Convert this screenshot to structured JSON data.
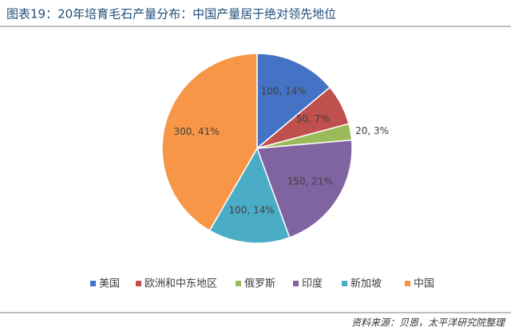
{
  "chart_data": {
    "type": "pie",
    "title": "图表19：20年培育毛石产量分布：中国产量居于绝对领先地位",
    "categories": [
      "美国",
      "欧洲和中东地区",
      "俄罗斯",
      "印度",
      "新加坡",
      "中国"
    ],
    "values": [
      100,
      50,
      20,
      150,
      100,
      300
    ],
    "value_labels": [
      "100, 14%",
      "50, 7%",
      "20, 3%",
      "150, 21%",
      "100, 14%",
      "300, 41%"
    ],
    "colors": [
      "#4472c4",
      "#c0504d",
      "#9bbb59",
      "#8064a2",
      "#4bacc6",
      "#f79646"
    ],
    "legend": "bottom",
    "source": "资料来源：贝恩，太平洋研究院整理"
  }
}
